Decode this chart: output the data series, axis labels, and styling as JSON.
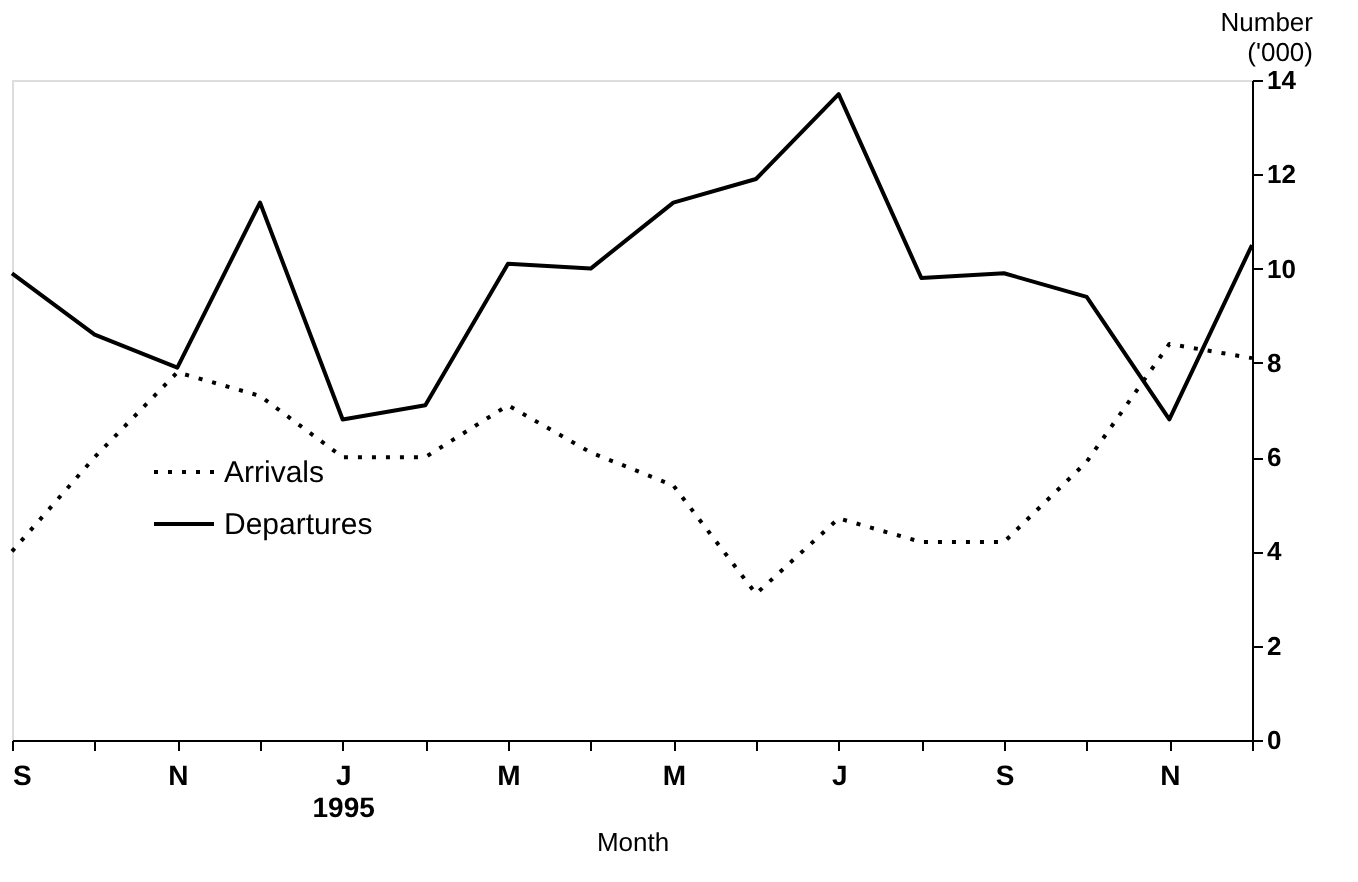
{
  "chart_data": {
    "type": "line",
    "categories": [
      "S",
      null,
      "N",
      null,
      "J\n1995",
      null,
      "M",
      null,
      "M",
      null,
      "J",
      null,
      "S",
      null,
      "N",
      null
    ],
    "series": [
      {
        "name": "Arrivals",
        "color": "#000000",
        "line_style": "dotted",
        "values": [
          4.0,
          6.0,
          7.8,
          7.3,
          6.0,
          6.0,
          7.1,
          6.1,
          5.4,
          3.1,
          4.7,
          4.2,
          4.2,
          5.9,
          8.4,
          8.1
        ]
      },
      {
        "name": "Departures",
        "color": "#000000",
        "line_style": "solid",
        "values": [
          9.9,
          8.6,
          7.9,
          11.4,
          6.8,
          7.1,
          10.1,
          10.0,
          11.4,
          11.9,
          13.7,
          9.8,
          9.9,
          9.4,
          6.8,
          10.5
        ]
      }
    ],
    "xlabel": "Month",
    "ylabel": "Number ('000)",
    "ylim": [
      0,
      14
    ],
    "yticks": [
      0,
      2,
      4,
      6,
      8,
      10,
      12,
      14
    ],
    "grid": false,
    "legend": "left",
    "marker": "none"
  }
}
